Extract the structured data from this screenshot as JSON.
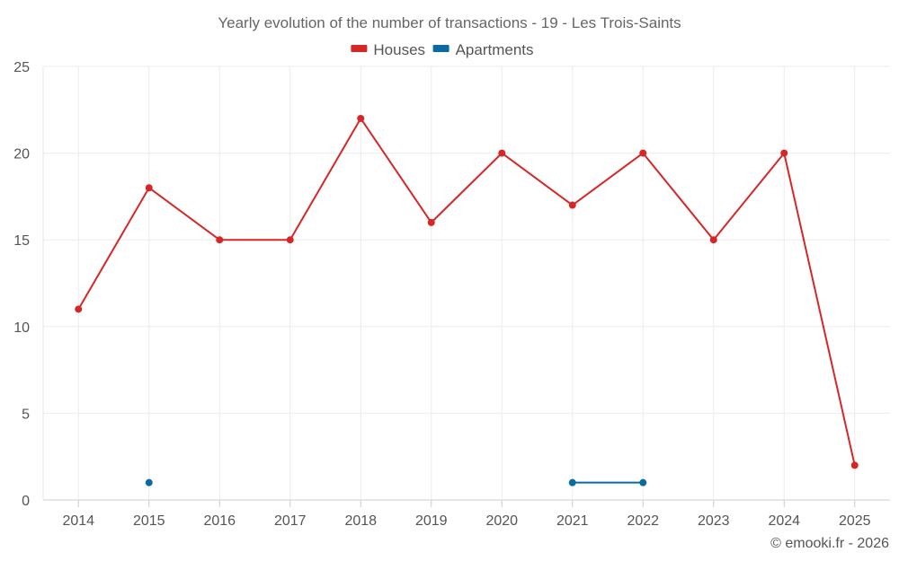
{
  "chart_data": {
    "type": "line",
    "title": "Yearly evolution of the number of transactions - 19 - Les Trois-Saints",
    "categories": [
      "2014",
      "2015",
      "2016",
      "2017",
      "2018",
      "2019",
      "2020",
      "2021",
      "2022",
      "2023",
      "2024",
      "2025"
    ],
    "series": [
      {
        "name": "Houses",
        "color": "#d62728",
        "values": [
          11,
          18,
          15,
          15,
          22,
          16,
          20,
          17,
          20,
          15,
          20,
          2
        ]
      },
      {
        "name": "Apartments",
        "color": "#0a6aa1",
        "values": [
          null,
          1,
          null,
          null,
          null,
          null,
          null,
          1,
          1,
          null,
          null,
          null
        ]
      }
    ],
    "ylim": [
      0,
      25
    ],
    "yticks": [
      0,
      5,
      10,
      15,
      20,
      25
    ],
    "grid": true,
    "legend": "top-center"
  },
  "footer": {
    "credit": "© emooki.fr - 2026"
  }
}
